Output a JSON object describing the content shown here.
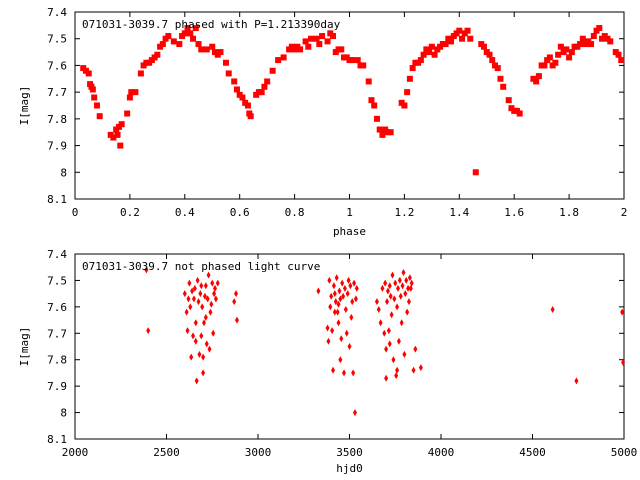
{
  "colors": {
    "points": "#ff0000",
    "axes": "#000000",
    "background": "#ffffff"
  },
  "chart_data": [
    {
      "type": "scatter",
      "title": "071031-3039.7 phased with P=1.213390day",
      "xlabel": "phase",
      "ylabel": "I[mag]",
      "xlim": [
        0,
        2
      ],
      "ylim": [
        7.4,
        8.1
      ],
      "y_inverted": true,
      "grid": false,
      "legend": "none",
      "marker": "filled-square",
      "xticks": [
        0,
        0.2,
        0.4,
        0.6,
        0.8,
        1,
        1.2,
        1.4,
        1.6,
        1.8,
        2
      ],
      "xtick_labels": [
        "0",
        "0.2",
        "0.4",
        "0.6",
        "0.8",
        "1",
        "1.2",
        "1.4",
        "1.6",
        "1.8",
        "2"
      ],
      "yticks": [
        7.4,
        7.5,
        7.6,
        7.7,
        7.8,
        7.9,
        8,
        8.1
      ],
      "ytick_labels": [
        "7.4",
        "7.5",
        "7.6",
        "7.7",
        "7.8",
        "7.9",
        "8",
        "8.1"
      ],
      "points": [
        [
          0.03,
          7.61
        ],
        [
          0.04,
          7.62
        ],
        [
          0.05,
          7.63
        ],
        [
          0.055,
          7.67
        ],
        [
          0.06,
          7.68
        ],
        [
          0.065,
          7.69
        ],
        [
          0.07,
          7.72
        ],
        [
          0.08,
          7.75
        ],
        [
          0.09,
          7.79
        ],
        [
          0.13,
          7.86
        ],
        [
          0.14,
          7.87
        ],
        [
          0.15,
          7.84
        ],
        [
          0.16,
          7.83
        ],
        [
          0.17,
          7.82
        ],
        [
          0.155,
          7.86
        ],
        [
          0.165,
          7.9
        ],
        [
          0.19,
          7.78
        ],
        [
          0.2,
          7.72
        ],
        [
          0.205,
          7.7
        ],
        [
          0.22,
          7.7
        ],
        [
          0.24,
          7.63
        ],
        [
          0.25,
          7.6
        ],
        [
          0.26,
          7.59
        ],
        [
          0.27,
          7.59
        ],
        [
          0.28,
          7.58
        ],
        [
          0.29,
          7.57
        ],
        [
          0.3,
          7.56
        ],
        [
          0.31,
          7.53
        ],
        [
          0.32,
          7.52
        ],
        [
          0.33,
          7.5
        ],
        [
          0.34,
          7.49
        ],
        [
          0.36,
          7.51
        ],
        [
          0.38,
          7.52
        ],
        [
          0.39,
          7.49
        ],
        [
          0.4,
          7.48
        ],
        [
          0.41,
          7.46
        ],
        [
          0.42,
          7.48
        ],
        [
          0.43,
          7.5
        ],
        [
          0.44,
          7.46
        ],
        [
          0.45,
          7.52
        ],
        [
          0.46,
          7.54
        ],
        [
          0.48,
          7.54
        ],
        [
          0.5,
          7.53
        ],
        [
          0.51,
          7.55
        ],
        [
          0.52,
          7.56
        ],
        [
          0.53,
          7.55
        ],
        [
          0.55,
          7.59
        ],
        [
          0.56,
          7.63
        ],
        [
          0.58,
          7.66
        ],
        [
          0.59,
          7.69
        ],
        [
          0.6,
          7.71
        ],
        [
          0.61,
          7.72
        ],
        [
          0.62,
          7.74
        ],
        [
          0.63,
          7.75
        ],
        [
          0.635,
          7.78
        ],
        [
          0.64,
          7.79
        ],
        [
          0.66,
          7.71
        ],
        [
          0.67,
          7.7
        ],
        [
          0.68,
          7.7
        ],
        [
          0.69,
          7.68
        ],
        [
          0.7,
          7.66
        ],
        [
          0.72,
          7.62
        ],
        [
          0.74,
          7.58
        ],
        [
          0.76,
          7.57
        ],
        [
          0.78,
          7.54
        ],
        [
          0.79,
          7.53
        ],
        [
          0.8,
          7.54
        ],
        [
          0.81,
          7.53
        ],
        [
          0.82,
          7.54
        ],
        [
          0.84,
          7.51
        ],
        [
          0.85,
          7.53
        ],
        [
          0.86,
          7.5
        ],
        [
          0.88,
          7.5
        ],
        [
          0.89,
          7.52
        ],
        [
          0.9,
          7.49
        ],
        [
          0.92,
          7.51
        ],
        [
          0.93,
          7.48
        ],
        [
          0.94,
          7.49
        ],
        [
          0.95,
          7.55
        ],
        [
          0.96,
          7.54
        ],
        [
          0.97,
          7.54
        ],
        [
          0.98,
          7.57
        ],
        [
          0.99,
          7.57
        ],
        [
          1.0,
          7.58
        ],
        [
          1.01,
          7.58
        ],
        [
          1.03,
          7.58
        ],
        [
          1.04,
          7.6
        ],
        [
          1.05,
          7.6
        ],
        [
          1.07,
          7.66
        ],
        [
          1.08,
          7.73
        ],
        [
          1.09,
          7.75
        ],
        [
          1.1,
          7.8
        ],
        [
          1.11,
          7.84
        ],
        [
          1.12,
          7.86
        ],
        [
          1.13,
          7.84
        ],
        [
          1.14,
          7.85
        ],
        [
          1.15,
          7.85
        ],
        [
          1.19,
          7.74
        ],
        [
          1.2,
          7.75
        ],
        [
          1.21,
          7.7
        ],
        [
          1.22,
          7.65
        ],
        [
          1.23,
          7.61
        ],
        [
          1.24,
          7.59
        ],
        [
          1.25,
          7.59
        ],
        [
          1.26,
          7.58
        ],
        [
          1.27,
          7.56
        ],
        [
          1.28,
          7.54
        ],
        [
          1.29,
          7.55
        ],
        [
          1.3,
          7.53
        ],
        [
          1.31,
          7.56
        ],
        [
          1.32,
          7.54
        ],
        [
          1.33,
          7.53
        ],
        [
          1.34,
          7.52
        ],
        [
          1.35,
          7.52
        ],
        [
          1.36,
          7.5
        ],
        [
          1.37,
          7.51
        ],
        [
          1.38,
          7.49
        ],
        [
          1.39,
          7.48
        ],
        [
          1.4,
          7.47
        ],
        [
          1.41,
          7.5
        ],
        [
          1.42,
          7.48
        ],
        [
          1.43,
          7.47
        ],
        [
          1.44,
          7.5
        ],
        [
          1.46,
          8.0
        ],
        [
          1.48,
          7.52
        ],
        [
          1.49,
          7.53
        ],
        [
          1.5,
          7.55
        ],
        [
          1.51,
          7.56
        ],
        [
          1.52,
          7.58
        ],
        [
          1.53,
          7.6
        ],
        [
          1.54,
          7.61
        ],
        [
          1.55,
          7.65
        ],
        [
          1.56,
          7.68
        ],
        [
          1.58,
          7.73
        ],
        [
          1.59,
          7.76
        ],
        [
          1.6,
          7.77
        ],
        [
          1.61,
          7.77
        ],
        [
          1.62,
          7.78
        ],
        [
          1.67,
          7.65
        ],
        [
          1.68,
          7.66
        ],
        [
          1.69,
          7.64
        ],
        [
          1.7,
          7.6
        ],
        [
          1.71,
          7.6
        ],
        [
          1.72,
          7.58
        ],
        [
          1.73,
          7.57
        ],
        [
          1.74,
          7.6
        ],
        [
          1.75,
          7.59
        ],
        [
          1.76,
          7.56
        ],
        [
          1.77,
          7.53
        ],
        [
          1.78,
          7.55
        ],
        [
          1.79,
          7.54
        ],
        [
          1.8,
          7.57
        ],
        [
          1.81,
          7.55
        ],
        [
          1.82,
          7.53
        ],
        [
          1.83,
          7.53
        ],
        [
          1.84,
          7.52
        ],
        [
          1.85,
          7.5
        ],
        [
          1.86,
          7.52
        ],
        [
          1.87,
          7.51
        ],
        [
          1.88,
          7.52
        ],
        [
          1.89,
          7.49
        ],
        [
          1.9,
          7.47
        ],
        [
          1.91,
          7.46
        ],
        [
          1.92,
          7.5
        ],
        [
          1.93,
          7.49
        ],
        [
          1.94,
          7.5
        ],
        [
          1.95,
          7.51
        ],
        [
          1.97,
          7.55
        ],
        [
          1.98,
          7.56
        ],
        [
          1.99,
          7.58
        ]
      ]
    },
    {
      "type": "scatter",
      "title": "071031-3039.7 not phased light curve",
      "xlabel": "hjd0",
      "ylabel": "I[mag]",
      "xlim": [
        2000,
        5000
      ],
      "ylim": [
        7.4,
        8.1
      ],
      "y_inverted": true,
      "grid": false,
      "legend": "none",
      "marker": "filled-diamond",
      "xticks": [
        2000,
        2500,
        3000,
        3500,
        4000,
        4500,
        5000
      ],
      "xtick_labels": [
        "2000",
        "2500",
        "3000",
        "3500",
        "4000",
        "4500",
        "5000"
      ],
      "yticks": [
        7.4,
        7.5,
        7.6,
        7.7,
        7.8,
        7.9,
        8,
        8.1
      ],
      "ytick_labels": [
        "7.4",
        "7.5",
        "7.6",
        "7.7",
        "7.8",
        "7.9",
        "8",
        "8.1"
      ],
      "points": [
        [
          2390,
          7.46
        ],
        [
          2400,
          7.69
        ],
        [
          2600,
          7.55
        ],
        [
          2610,
          7.62
        ],
        [
          2615,
          7.69
        ],
        [
          2620,
          7.57
        ],
        [
          2625,
          7.51
        ],
        [
          2630,
          7.6
        ],
        [
          2635,
          7.79
        ],
        [
          2640,
          7.54
        ],
        [
          2645,
          7.71
        ],
        [
          2650,
          7.57
        ],
        [
          2655,
          7.53
        ],
        [
          2660,
          7.66
        ],
        [
          2665,
          7.88
        ],
        [
          2670,
          7.5
        ],
        [
          2675,
          7.58
        ],
        [
          2680,
          7.78
        ],
        [
          2685,
          7.55
        ],
        [
          2690,
          7.52
        ],
        [
          2695,
          7.6
        ],
        [
          2700,
          7.85
        ],
        [
          2705,
          7.66
        ],
        [
          2710,
          7.56
        ],
        [
          2715,
          7.52
        ],
        [
          2720,
          7.74
        ],
        [
          2725,
          7.57
        ],
        [
          2730,
          7.48
        ],
        [
          2735,
          7.76
        ],
        [
          2740,
          7.62
        ],
        [
          2745,
          7.59
        ],
        [
          2750,
          7.51
        ],
        [
          2755,
          7.7
        ],
        [
          2760,
          7.55
        ],
        [
          2765,
          7.53
        ],
        [
          2770,
          7.57
        ],
        [
          2780,
          7.51
        ],
        [
          2700,
          7.79
        ],
        [
          2715,
          7.64
        ],
        [
          2690,
          7.71
        ],
        [
          2660,
          7.73
        ],
        [
          2880,
          7.55
        ],
        [
          2885,
          7.65
        ],
        [
          2870,
          7.58
        ],
        [
          3330,
          7.54
        ],
        [
          3380,
          7.68
        ],
        [
          3385,
          7.73
        ],
        [
          3390,
          7.5
        ],
        [
          3395,
          7.6
        ],
        [
          3400,
          7.56
        ],
        [
          3405,
          7.69
        ],
        [
          3410,
          7.84
        ],
        [
          3415,
          7.52
        ],
        [
          3420,
          7.55
        ],
        [
          3425,
          7.58
        ],
        [
          3430,
          7.49
        ],
        [
          3435,
          7.62
        ],
        [
          3440,
          7.66
        ],
        [
          3445,
          7.54
        ],
        [
          3450,
          7.57
        ],
        [
          3455,
          7.72
        ],
        [
          3460,
          7.51
        ],
        [
          3465,
          7.56
        ],
        [
          3470,
          7.85
        ],
        [
          3475,
          7.53
        ],
        [
          3480,
          7.61
        ],
        [
          3485,
          7.7
        ],
        [
          3490,
          7.55
        ],
        [
          3495,
          7.5
        ],
        [
          3500,
          7.75
        ],
        [
          3505,
          7.52
        ],
        [
          3510,
          7.64
        ],
        [
          3515,
          7.58
        ],
        [
          3520,
          7.85
        ],
        [
          3525,
          7.51
        ],
        [
          3530,
          8.0
        ],
        [
          3535,
          7.57
        ],
        [
          3540,
          7.53
        ],
        [
          3450,
          7.8
        ],
        [
          3420,
          7.62
        ],
        [
          3440,
          7.59
        ],
        [
          3650,
          7.58
        ],
        [
          3660,
          7.61
        ],
        [
          3670,
          7.66
        ],
        [
          3680,
          7.53
        ],
        [
          3690,
          7.7
        ],
        [
          3695,
          7.51
        ],
        [
          3700,
          7.76
        ],
        [
          3705,
          7.58
        ],
        [
          3710,
          7.54
        ],
        [
          3715,
          7.69
        ],
        [
          3720,
          7.52
        ],
        [
          3725,
          7.56
        ],
        [
          3730,
          7.63
        ],
        [
          3735,
          7.48
        ],
        [
          3740,
          7.8
        ],
        [
          3745,
          7.57
        ],
        [
          3750,
          7.51
        ],
        [
          3755,
          7.86
        ],
        [
          3760,
          7.6
        ],
        [
          3765,
          7.53
        ],
        [
          3770,
          7.73
        ],
        [
          3775,
          7.5
        ],
        [
          3780,
          7.56
        ],
        [
          3785,
          7.66
        ],
        [
          3790,
          7.52
        ],
        [
          3795,
          7.47
        ],
        [
          3800,
          7.78
        ],
        [
          3805,
          7.55
        ],
        [
          3810,
          7.5
        ],
        [
          3815,
          7.62
        ],
        [
          3820,
          7.53
        ],
        [
          3825,
          7.58
        ],
        [
          3830,
          7.49
        ],
        [
          3835,
          7.53
        ],
        [
          3840,
          7.51
        ],
        [
          3850,
          7.84
        ],
        [
          3860,
          7.76
        ],
        [
          3890,
          7.83
        ],
        [
          3700,
          7.87
        ],
        [
          3720,
          7.74
        ],
        [
          3760,
          7.84
        ],
        [
          4610,
          7.61
        ],
        [
          4740,
          7.88
        ],
        [
          4990,
          7.62
        ],
        [
          4995,
          7.81
        ]
      ]
    }
  ]
}
